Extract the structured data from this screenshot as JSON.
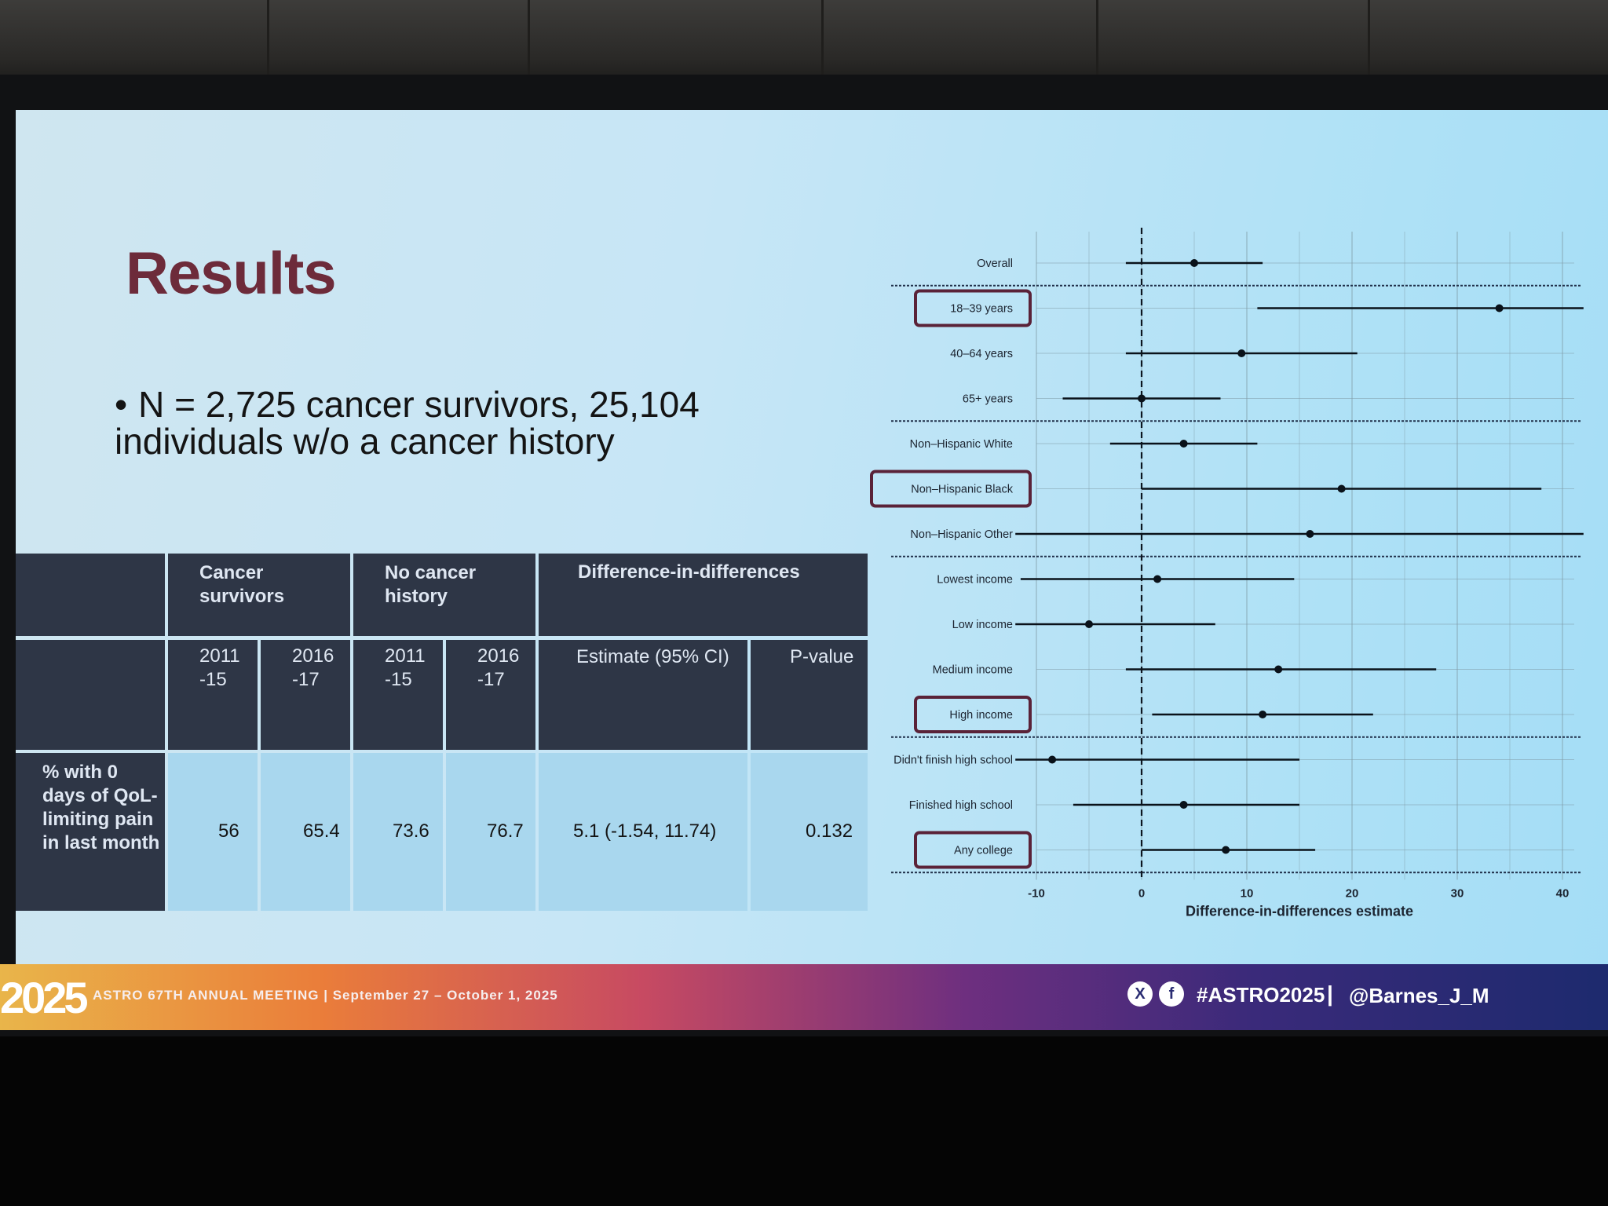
{
  "slide": {
    "title": "Results",
    "bullet": "N = 2,725 cancer survivors, 25,104 individuals w/o a cancer history"
  },
  "table": {
    "group_headers": [
      "Cancer survivors",
      "No cancer history",
      "Difference-in-differences"
    ],
    "sub_headers": [
      "2011 -15",
      "2016 -17",
      "2011 -15",
      "2016 -17",
      "Estimate (95% CI)",
      "P-value"
    ],
    "row_label": "% with 0 days of QoL-limiting pain in last month",
    "row_values": [
      "56",
      "65.4",
      "73.6",
      "76.7",
      "5.1 (-1.54, 11.74)",
      "0.132"
    ]
  },
  "chart_data": {
    "type": "scatter",
    "xlabel": "Difference-in-differences estimate",
    "xlim": [
      -10,
      40
    ],
    "xticks": [
      "-10",
      "0",
      "10",
      "20",
      "30",
      "40"
    ],
    "reference_line": 0,
    "categories": [
      {
        "label": "Overall",
        "estimate": 5,
        "lower": -1.5,
        "upper": 11.5,
        "boxed": false
      },
      {
        "label": "18–39 years",
        "estimate": 34,
        "lower": 11,
        "upper": 42,
        "boxed": true
      },
      {
        "label": "40–64 years",
        "estimate": 9.5,
        "lower": -1.5,
        "upper": 20.5,
        "boxed": false
      },
      {
        "label": "65+ years",
        "estimate": 0,
        "lower": -7.5,
        "upper": 7.5,
        "boxed": false
      },
      {
        "label": "Non–Hispanic White",
        "estimate": 4,
        "lower": -3,
        "upper": 11,
        "boxed": false
      },
      {
        "label": "Non–Hispanic Black",
        "estimate": 19,
        "lower": 0,
        "upper": 38,
        "boxed": true
      },
      {
        "label": "Non–Hispanic Other",
        "estimate": 16,
        "lower": -12,
        "upper": 42,
        "boxed": false
      },
      {
        "label": "Lowest income",
        "estimate": 1.5,
        "lower": -11.5,
        "upper": 14.5,
        "boxed": false
      },
      {
        "label": "Low income",
        "estimate": -5,
        "lower": -12,
        "upper": 7,
        "boxed": false
      },
      {
        "label": "Medium income",
        "estimate": 13,
        "lower": -1.5,
        "upper": 28,
        "boxed": false
      },
      {
        "label": "High income",
        "estimate": 11.5,
        "lower": 1,
        "upper": 22,
        "boxed": true
      },
      {
        "label": "Didn't finish high school",
        "estimate": -8.5,
        "lower": -12,
        "upper": 15,
        "boxed": false
      },
      {
        "label": "Finished high school",
        "estimate": 4,
        "lower": -6.5,
        "upper": 15,
        "boxed": false
      },
      {
        "label": "Any college",
        "estimate": 8,
        "lower": 0,
        "upper": 16.5,
        "boxed": true
      }
    ],
    "group_separators_after": [
      0,
      3,
      6,
      10,
      13
    ],
    "highlight_color": "#5a2238"
  },
  "footer": {
    "logo": "2025",
    "meeting": "ASTRO 67TH ANNUAL MEETING  |  September 27 – October 1, 2025",
    "x_icon": "X",
    "facebook_icon": "f",
    "hashtag": "#ASTRO2025",
    "separator": "|",
    "handle": "@Barnes_J_M"
  }
}
